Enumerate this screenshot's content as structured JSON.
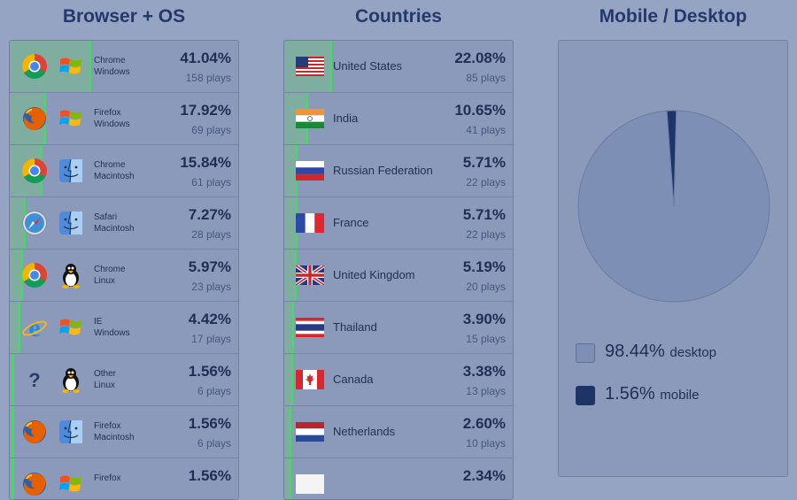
{
  "headers": {
    "browser_os": "Browser + OS",
    "countries": "Countries",
    "mobile_desktop": "Mobile / Desktop"
  },
  "browsers": [
    {
      "browser_icon": "chrome-icon",
      "os_icon": "windows-icon",
      "name": "Chrome\nWindows",
      "percent": "41.04%",
      "plays": "158 plays",
      "share": 41.04
    },
    {
      "browser_icon": "firefox-icon",
      "os_icon": "windows-icon",
      "name": "Firefox\nWindows",
      "percent": "17.92%",
      "plays": "69 plays",
      "share": 17.92
    },
    {
      "browser_icon": "chrome-icon",
      "os_icon": "mac-finder-icon",
      "name": "Chrome\nMacintosh",
      "percent": "15.84%",
      "plays": "61 plays",
      "share": 15.84
    },
    {
      "browser_icon": "safari-icon",
      "os_icon": "mac-finder-icon",
      "name": "Safari\nMacintosh",
      "percent": "7.27%",
      "plays": "28 plays",
      "share": 7.27
    },
    {
      "browser_icon": "chrome-icon",
      "os_icon": "linux-tux-icon",
      "name": "Chrome\nLinux",
      "percent": "5.97%",
      "plays": "23 plays",
      "share": 5.97
    },
    {
      "browser_icon": "ie-icon",
      "os_icon": "windows-icon",
      "name": "IE\nWindows",
      "percent": "4.42%",
      "plays": "17 plays",
      "share": 4.42
    },
    {
      "browser_icon": "unknown-icon",
      "os_icon": "linux-tux-icon",
      "name": "Other\nLinux",
      "percent": "1.56%",
      "plays": "6 plays",
      "share": 1.56
    },
    {
      "browser_icon": "firefox-icon",
      "os_icon": "mac-finder-icon",
      "name": "Firefox\nMacintosh",
      "percent": "1.56%",
      "plays": "6 plays",
      "share": 1.56
    },
    {
      "browser_icon": "firefox-icon",
      "os_icon": "windows-icon",
      "name": "Firefox",
      "percent": "1.56%",
      "plays": "",
      "share": 1.56
    }
  ],
  "countries": [
    {
      "flag": "us-flag-icon",
      "name": "United States",
      "percent": "22.08%",
      "plays": "85 plays",
      "share": 22.08
    },
    {
      "flag": "india-flag-icon",
      "name": "India",
      "percent": "10.65%",
      "plays": "41 plays",
      "share": 10.65
    },
    {
      "flag": "russia-flag-icon",
      "name": "Russian Federation",
      "percent": "5.71%",
      "plays": "22 plays",
      "share": 5.71
    },
    {
      "flag": "france-flag-icon",
      "name": "France",
      "percent": "5.71%",
      "plays": "22 plays",
      "share": 5.71
    },
    {
      "flag": "uk-flag-icon",
      "name": "United Kingdom",
      "percent": "5.19%",
      "plays": "20 plays",
      "share": 5.19
    },
    {
      "flag": "thailand-flag-icon",
      "name": "Thailand",
      "percent": "3.90%",
      "plays": "15 plays",
      "share": 3.9
    },
    {
      "flag": "canada-flag-icon",
      "name": "Canada",
      "percent": "3.38%",
      "plays": "13 plays",
      "share": 3.38
    },
    {
      "flag": "netherlands-flag-icon",
      "name": "Netherlands",
      "percent": "2.60%",
      "plays": "10 plays",
      "share": 2.6
    },
    {
      "flag": "white-flag-icon",
      "name": "",
      "percent": "2.34%",
      "plays": "",
      "share": 2.34
    }
  ],
  "device": {
    "desktop_percent": "98.44%",
    "desktop_label": "desktop",
    "mobile_percent": "1.56%",
    "mobile_label": "mobile",
    "desktop_share": 98.44,
    "mobile_share": 1.56,
    "colors": {
      "desktop": "#7d8fb5",
      "mobile": "#1f3466"
    }
  },
  "colors": {
    "bar_fill": "#7fad9f",
    "bar_edge": "#3ee05a",
    "title": "#24386a"
  },
  "chart_data": {
    "type": "pie",
    "title": "Mobile / Desktop",
    "series": [
      {
        "name": "desktop",
        "value": 98.44
      },
      {
        "name": "mobile",
        "value": 1.56
      }
    ]
  }
}
